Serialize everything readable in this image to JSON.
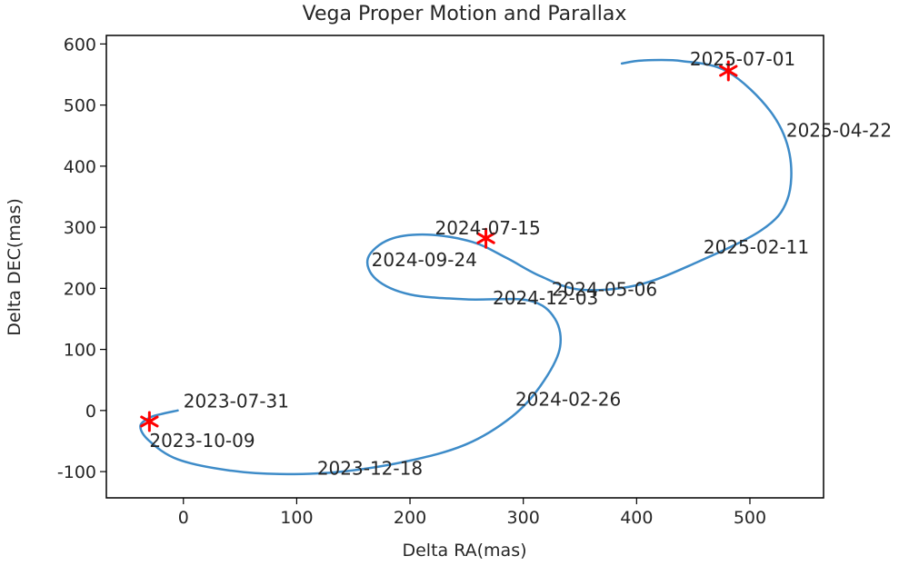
{
  "chart_data": {
    "type": "line",
    "title": "Vega Proper Motion and Parallax",
    "xlabel": "Delta RA(mas)",
    "ylabel": "Delta DEC(mas)",
    "xlim": [
      -68,
      565
    ],
    "ylim": [
      -143,
      614
    ],
    "xticks": [
      0,
      100,
      200,
      300,
      400,
      500
    ],
    "yticks": [
      -100,
      0,
      100,
      200,
      300,
      400,
      500,
      600
    ],
    "grid": false,
    "line_color": "#3d8bc8",
    "marker_color": "#ff0000",
    "path": [
      [
        -5,
        0
      ],
      [
        -20,
        -6
      ],
      [
        -30,
        -12
      ],
      [
        -38,
        -26
      ],
      [
        -30,
        -50
      ],
      [
        -5,
        -80
      ],
      [
        40,
        -98
      ],
      [
        85,
        -104
      ],
      [
        140,
        -100
      ],
      [
        200,
        -82
      ],
      [
        250,
        -55
      ],
      [
        290,
        -10
      ],
      [
        315,
        40
      ],
      [
        332,
        100
      ],
      [
        328,
        150
      ],
      [
        305,
        180
      ],
      [
        250,
        182
      ],
      [
        200,
        190
      ],
      [
        170,
        215
      ],
      [
        163,
        250
      ],
      [
        182,
        280
      ],
      [
        215,
        288
      ],
      [
        255,
        276
      ],
      [
        285,
        250
      ],
      [
        315,
        220
      ],
      [
        350,
        198
      ],
      [
        400,
        205
      ],
      [
        450,
        240
      ],
      [
        510,
        295
      ],
      [
        533,
        345
      ],
      [
        535,
        420
      ],
      [
        518,
        490
      ],
      [
        480,
        555
      ],
      [
        440,
        572
      ],
      [
        405,
        573
      ],
      [
        387,
        568
      ]
    ],
    "markers": [
      {
        "x": -30,
        "y": -18
      },
      {
        "x": 267,
        "y": 282
      },
      {
        "x": 481,
        "y": 556
      }
    ],
    "annotations": [
      {
        "text": "2023-07-31",
        "x": 0,
        "y": 5
      },
      {
        "text": "2023-10-09",
        "x": -30,
        "y": -60
      },
      {
        "text": "2023-12-18",
        "x": 118,
        "y": -105
      },
      {
        "text": "2024-02-26",
        "x": 293,
        "y": 8
      },
      {
        "text": "2024-05-06",
        "x": 325,
        "y": 188
      },
      {
        "text": "2024-07-15",
        "x": 222,
        "y": 288
      },
      {
        "text": "2024-09-24",
        "x": 166,
        "y": 236
      },
      {
        "text": "2024-12-03",
        "x": 273,
        "y": 174
      },
      {
        "text": "2025-02-11",
        "x": 459,
        "y": 257
      },
      {
        "text": "2025-04-22",
        "x": 532,
        "y": 448
      },
      {
        "text": "2025-07-01",
        "x": 447,
        "y": 565
      }
    ]
  }
}
